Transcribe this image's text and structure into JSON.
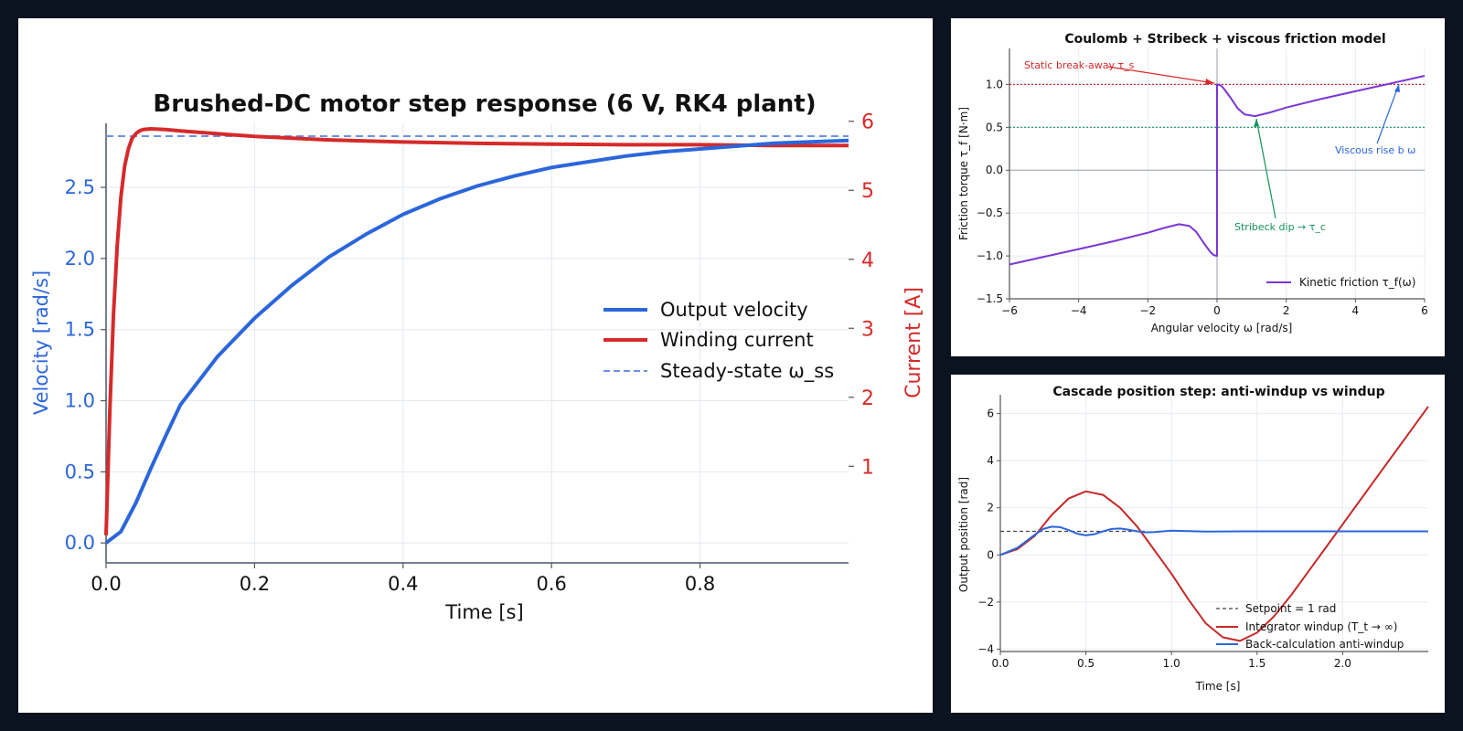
{
  "charts": {
    "main": {
      "type": "line",
      "title": "Brushed-DC motor step response (6 V, RK4 plant)",
      "xlabel": "Time [s]",
      "ylabel_left": "Velocity [rad/s]",
      "ylabel_right": "Current [A]",
      "xlim": [
        0,
        1.0
      ],
      "ylim_left": [
        -0.14,
        2.95
      ],
      "ylim_right": [
        -0.4,
        5.97
      ],
      "x_ticks": [
        "0.0",
        "0.2",
        "0.4",
        "0.6",
        "0.8"
      ],
      "y_ticks_left": [
        "0.0",
        "0.5",
        "1.0",
        "1.5",
        "2.0",
        "2.5"
      ],
      "y_ticks_right": [
        "1",
        "2",
        "3",
        "4",
        "5",
        "6"
      ],
      "grid": true,
      "legend_placement": "center-right",
      "legend": [
        "Output velocity",
        "Winding current",
        "Steady-state ω_ss"
      ],
      "colors": {
        "velocity": "#2b66db",
        "current": "#d62a2a",
        "steady": "#6b93e6"
      },
      "series": [
        {
          "name": "Output velocity",
          "axis": "left",
          "x": [
            0,
            0.02,
            0.04,
            0.06,
            0.08,
            0.1,
            0.15,
            0.2,
            0.25,
            0.3,
            0.35,
            0.4,
            0.45,
            0.5,
            0.55,
            0.6,
            0.65,
            0.7,
            0.75,
            0.8,
            0.85,
            0.9,
            0.95,
            1.0
          ],
          "y": [
            0,
            0.08,
            0.28,
            0.52,
            0.75,
            0.97,
            1.31,
            1.58,
            1.81,
            2.01,
            2.17,
            2.31,
            2.42,
            2.51,
            2.58,
            2.64,
            2.68,
            2.72,
            2.75,
            2.77,
            2.79,
            2.81,
            2.82,
            2.83
          ]
        },
        {
          "name": "Winding current",
          "axis": "right",
          "x": [
            0,
            0.005,
            0.01,
            0.015,
            0.02,
            0.025,
            0.03,
            0.035,
            0.04,
            0.045,
            0.05,
            0.06,
            0.08,
            0.1,
            0.2,
            0.3,
            0.4,
            0.5,
            0.6,
            0.7,
            0.8,
            0.9,
            1.0
          ],
          "y": [
            0,
            1.8,
            3.2,
            4.2,
            4.9,
            5.35,
            5.6,
            5.75,
            5.82,
            5.86,
            5.88,
            5.89,
            5.88,
            5.86,
            5.78,
            5.73,
            5.7,
            5.68,
            5.67,
            5.66,
            5.66,
            5.65,
            5.65
          ]
        },
        {
          "name": "Steady-state ω_ss",
          "axis": "left",
          "y_constant": 2.86
        }
      ]
    },
    "friction": {
      "type": "line",
      "title": "Coulomb + Stribeck + viscous friction model",
      "xlabel": "Angular velocity ω [rad/s]",
      "ylabel": "Friction torque τ_f [N·m]",
      "xlim": [
        -6,
        6
      ],
      "ylim": [
        -1.5,
        1.42
      ],
      "x_ticks": [
        "−6",
        "−4",
        "−2",
        "0",
        "2",
        "4",
        "6"
      ],
      "y_ticks": [
        "−1.5",
        "−1.0",
        "−0.5",
        "0.0",
        "0.5",
        "1.0"
      ],
      "grid": true,
      "legend_placement": "lower-right",
      "legend": [
        "Kinetic friction τ_f(ω)"
      ],
      "reference_lines": {
        "static_torque": 1.0,
        "coulomb_torque": 0.5
      },
      "colors": {
        "curve": "#7b35d6",
        "static": "#d62a2a",
        "coulomb": "#12935a",
        "viscous": "#2b66db"
      },
      "annotations": {
        "static": "Static break-away τ_s",
        "stribeck": "Stribeck dip → τ_c",
        "viscous": "Viscous rise b ω"
      },
      "series": [
        {
          "name": "Kinetic friction τ_f(ω)",
          "x": [
            -6,
            -5,
            -4,
            -3,
            -2,
            -1.5,
            -1.1,
            -0.8,
            -0.6,
            -0.4,
            -0.2,
            -0.1,
            -0.001,
            0.001,
            0.1,
            0.2,
            0.4,
            0.6,
            0.8,
            1.1,
            1.5,
            2,
            3,
            4,
            5,
            6
          ],
          "y": [
            -1.1,
            -1.01,
            -0.92,
            -0.83,
            -0.73,
            -0.67,
            -0.63,
            -0.65,
            -0.72,
            -0.84,
            -0.95,
            -0.99,
            -1.0,
            1.0,
            0.99,
            0.95,
            0.84,
            0.72,
            0.65,
            0.63,
            0.67,
            0.73,
            0.83,
            0.92,
            1.01,
            1.1
          ]
        }
      ]
    },
    "cascade": {
      "type": "line",
      "title": "Cascade position step: anti-windup vs windup",
      "xlabel": "Time [s]",
      "ylabel": "Output position [rad]",
      "xlim": [
        0,
        2.5
      ],
      "ylim": [
        -4.1,
        6.8
      ],
      "x_ticks": [
        "0.0",
        "0.5",
        "1.0",
        "1.5",
        "2.0"
      ],
      "y_ticks": [
        "−4",
        "−2",
        "0",
        "2",
        "4",
        "6"
      ],
      "grid": true,
      "legend_placement": "lower-right",
      "legend": [
        "Setpoint = 1 rad",
        "Integrator windup (T_t → ∞)",
        "Back-calculation anti-windup"
      ],
      "colors": {
        "setpoint": "#444444",
        "windup": "#c62828",
        "antiwindup": "#2b66db"
      },
      "series": [
        {
          "name": "Setpoint = 1 rad",
          "y_constant": 1.0
        },
        {
          "name": "Integrator windup (T_t → ∞)",
          "x": [
            0,
            0.1,
            0.2,
            0.3,
            0.4,
            0.5,
            0.6,
            0.7,
            0.8,
            0.9,
            1.0,
            1.1,
            1.2,
            1.3,
            1.4,
            1.5,
            1.6,
            1.7,
            1.8,
            1.9,
            2.0,
            2.1,
            2.2,
            2.3,
            2.4,
            2.5
          ],
          "y": [
            0,
            0.25,
            0.8,
            1.7,
            2.4,
            2.7,
            2.55,
            2.0,
            1.2,
            0.2,
            -0.8,
            -1.9,
            -2.9,
            -3.5,
            -3.65,
            -3.3,
            -2.6,
            -1.7,
            -0.7,
            0.3,
            1.3,
            2.3,
            3.3,
            4.3,
            5.3,
            6.3
          ]
        },
        {
          "name": "Back-calculation anti-windup",
          "x": [
            0,
            0.1,
            0.2,
            0.25,
            0.3,
            0.35,
            0.4,
            0.45,
            0.5,
            0.55,
            0.6,
            0.65,
            0.7,
            0.75,
            0.8,
            0.85,
            0.9,
            1.0,
            1.1,
            1.2,
            1.4,
            1.6,
            1.8,
            2.0,
            2.2,
            2.5
          ],
          "y": [
            0,
            0.3,
            0.85,
            1.1,
            1.2,
            1.18,
            1.05,
            0.9,
            0.83,
            0.88,
            1.0,
            1.1,
            1.12,
            1.07,
            1.0,
            0.96,
            0.97,
            1.03,
            1.01,
            0.99,
            1.0,
            1.0,
            1.0,
            1.0,
            1.0,
            1.0
          ]
        }
      ]
    }
  }
}
